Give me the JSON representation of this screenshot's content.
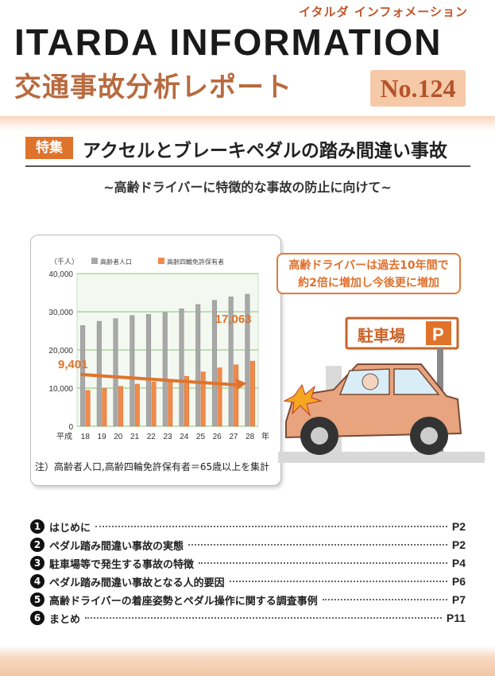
{
  "header": {
    "kana_title": "イタルダ インフォメーション",
    "main_title": "ITARDA INFORMATION",
    "sub_title": "交通事故分析レポート",
    "issue": "No.124"
  },
  "feature": {
    "tag": "特集",
    "title": "アクセルとブレーキペダルの踏み間違い事故",
    "subtitle": "~高齢ドライバーに特徴的な事故の防止に向けて~"
  },
  "callout": {
    "line1": "高齢ドライバーは過去10年間で",
    "line2": "約2倍に増加し今後更に増加"
  },
  "illustration": {
    "parking_sign": "駐車場",
    "parking_letter": "P"
  },
  "chart_data": {
    "type": "bar",
    "unit_label": "（千人）",
    "x_prefix": "平成",
    "x_suffix": "年",
    "categories": [
      "18",
      "19",
      "20",
      "21",
      "22",
      "23",
      "24",
      "25",
      "26",
      "27",
      "28"
    ],
    "series": [
      {
        "name": "高齢者人口",
        "color": "#a8a8a8",
        "values": [
          26400,
          27500,
          28200,
          29000,
          29300,
          29800,
          30800,
          31900,
          33000,
          33900,
          34600
        ]
      },
      {
        "name": "高齢四輪免許保有者",
        "color": "#f08a4b",
        "values": [
          9401,
          9900,
          10450,
          11050,
          11600,
          12200,
          13100,
          14250,
          15300,
          16100,
          17063
        ]
      }
    ],
    "annotations": [
      "9,401",
      "17,063"
    ],
    "y_ticks": [
      "40,000",
      "30,000",
      "20,000",
      "10,000",
      "0"
    ],
    "ylim": [
      0,
      40000
    ],
    "grid": true,
    "trend_arrow": true,
    "note": "注）高齢者人口,高齢四輪免許保有者＝65歳以上を集計"
  },
  "toc": [
    {
      "num": "1",
      "label": "はじめに",
      "page": "P2"
    },
    {
      "num": "2",
      "label": "ペダル踏み間違い事故の実態",
      "page": "P2"
    },
    {
      "num": "3",
      "label": "駐車場等で発生する事故の特徴",
      "page": "P4"
    },
    {
      "num": "4",
      "label": "ペダル踏み間違い事故となる人的要因",
      "page": "P6"
    },
    {
      "num": "5",
      "label": "高齢ドライバーの着座姿勢とペダル操作に関する調査事例",
      "page": "P7"
    },
    {
      "num": "6",
      "label": "まとめ",
      "page": "P11"
    }
  ],
  "colors": {
    "accent": "#e0732c",
    "brown": "#b86a3e",
    "badge_bg": "#f6c9a8"
  }
}
